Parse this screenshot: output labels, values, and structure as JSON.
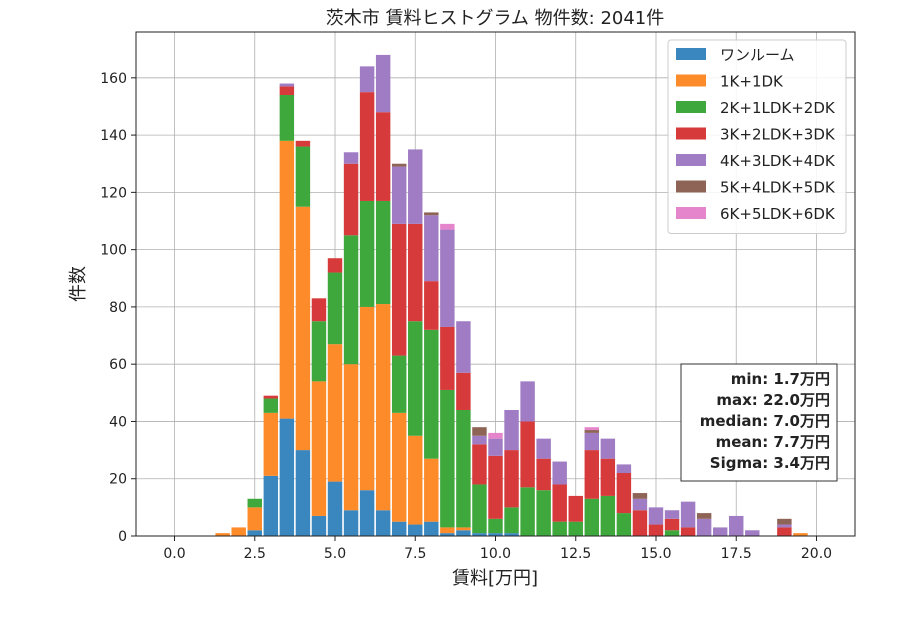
{
  "chart_data": {
    "type": "bar",
    "stacked": true,
    "title": "茨木市 賃料ヒストグラム  物件数: 2041件",
    "xlabel": "賃料[万円]",
    "ylabel": "件数",
    "xlim": [
      -1.2,
      21.2
    ],
    "ylim": [
      0,
      176
    ],
    "xticks": [
      0.0,
      2.5,
      5.0,
      7.5,
      10.0,
      12.5,
      15.0,
      17.5,
      20.0
    ],
    "xtick_labels": [
      "0.0",
      "2.5",
      "5.0",
      "7.5",
      "10.0",
      "12.5",
      "15.0",
      "17.5",
      "20.0"
    ],
    "yticks": [
      0,
      20,
      40,
      60,
      80,
      100,
      120,
      140,
      160
    ],
    "ytick_labels": [
      "0",
      "20",
      "40",
      "60",
      "80",
      "100",
      "120",
      "140",
      "160"
    ],
    "grid": true,
    "legend_position": "top-right",
    "bin_width": 0.5,
    "bin_centers": [
      1.5,
      2.0,
      2.5,
      3.0,
      3.5,
      4.0,
      4.5,
      5.0,
      5.5,
      6.0,
      6.5,
      7.0,
      7.5,
      8.0,
      8.5,
      9.0,
      9.5,
      10.0,
      10.5,
      11.0,
      11.5,
      12.0,
      12.5,
      13.0,
      13.5,
      14.0,
      14.5,
      15.0,
      15.5,
      16.0,
      16.5,
      17.0,
      17.5,
      18.0,
      18.5,
      19.0,
      19.5
    ],
    "series": [
      {
        "name": "ワンルーム",
        "color": "#3a87bf",
        "values": [
          0,
          0,
          2,
          21,
          41,
          30,
          7,
          19,
          9,
          16,
          9,
          5,
          4,
          5,
          1,
          2,
          1,
          1,
          1,
          0,
          0,
          0,
          0,
          0,
          0,
          0,
          0,
          0,
          0,
          0,
          0,
          0,
          0,
          0,
          0,
          0,
          0
        ]
      },
      {
        "name": "1K+1DK",
        "color": "#fd8b2a",
        "values": [
          1,
          3,
          8,
          22,
          97,
          85,
          47,
          48,
          51,
          64,
          72,
          38,
          31,
          22,
          2,
          1,
          0,
          0,
          0,
          0,
          0,
          0,
          0,
          0,
          0,
          0,
          0,
          0,
          0,
          0,
          0,
          0,
          0,
          0,
          0,
          0,
          1
        ]
      },
      {
        "name": "2K+1LDK+2DK",
        "color": "#3ea83c",
        "values": [
          0,
          0,
          3,
          5,
          16,
          21,
          21,
          25,
          45,
          37,
          36,
          20,
          40,
          45,
          48,
          41,
          17,
          5,
          9,
          17,
          16,
          5,
          5,
          13,
          14,
          8,
          0,
          0,
          2,
          0,
          0,
          0,
          0,
          0,
          0,
          0,
          0
        ]
      },
      {
        "name": "3K+2LDK+3DK",
        "color": "#d63a3a",
        "values": [
          0,
          0,
          0,
          1,
          3,
          2,
          8,
          5,
          25,
          38,
          31,
          46,
          34,
          17,
          22,
          13,
          14,
          22,
          20,
          23,
          11,
          13,
          9,
          17,
          13,
          14,
          9,
          4,
          4,
          3,
          0,
          0,
          0,
          0,
          0,
          3,
          0
        ]
      },
      {
        "name": "4K+3LDK+4DK",
        "color": "#a07cc4",
        "values": [
          0,
          0,
          0,
          0,
          1,
          0,
          0,
          0,
          4,
          9,
          20,
          20,
          26,
          23,
          34,
          18,
          3,
          6,
          14,
          14,
          7,
          8,
          0,
          6,
          7,
          3,
          4,
          6,
          3,
          9,
          6,
          3,
          7,
          2,
          0,
          1,
          0
        ]
      },
      {
        "name": "5K+4LDK+5DK",
        "color": "#8e6457",
        "values": [
          0,
          0,
          0,
          0,
          0,
          0,
          0,
          0,
          0,
          0,
          0,
          1,
          0,
          1,
          0,
          0,
          3,
          0,
          0,
          0,
          0,
          0,
          0,
          1,
          0,
          0,
          2,
          0,
          0,
          0,
          2,
          0,
          0,
          0,
          0,
          2,
          0
        ]
      },
      {
        "name": "6K+5LDK+6DK",
        "color": "#e585cc",
        "values": [
          0,
          0,
          0,
          0,
          0,
          0,
          0,
          0,
          0,
          0,
          0,
          0,
          0,
          0,
          2,
          0,
          0,
          2,
          0,
          0,
          0,
          0,
          0,
          1,
          0,
          0,
          0,
          0,
          0,
          0,
          0,
          0,
          0,
          0,
          0,
          0,
          0
        ]
      }
    ],
    "stats": {
      "min": "min: 1.7万円",
      "max": "max: 22.0万円",
      "median": "median: 7.0万円",
      "mean": "mean: 7.7万円",
      "sigma": "Sigma: 3.4万円"
    }
  }
}
